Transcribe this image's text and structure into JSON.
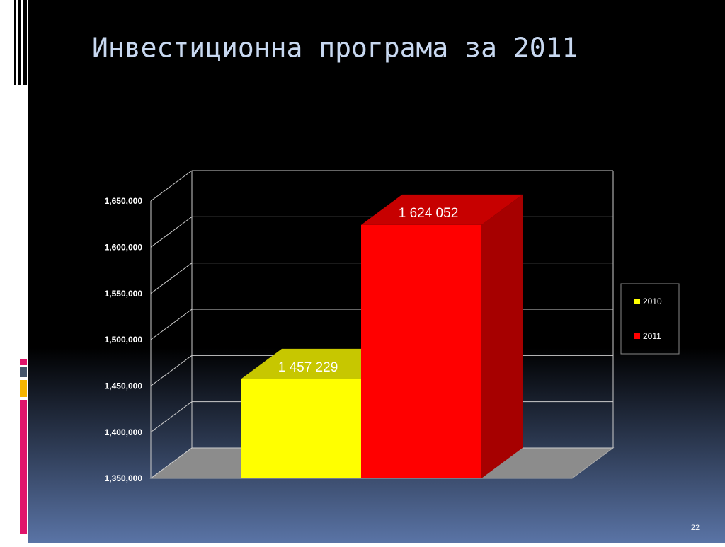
{
  "chart_data": {
    "type": "bar3d",
    "title": "Инвестиционна програма за 2011",
    "categories": [
      null
    ],
    "series": [
      {
        "name": "2010",
        "color": "#ffff00",
        "values": [
          1457229
        ],
        "value_labels": [
          "1 457 229"
        ]
      },
      {
        "name": "2011",
        "color": "#ff0000",
        "values": [
          1624052
        ],
        "value_labels": [
          "1 624 052"
        ]
      }
    ],
    "ylim": [
      1350000,
      1650000
    ],
    "yticks": [
      {
        "value": 1350000,
        "label": "1,350,000"
      },
      {
        "value": 1400000,
        "label": "1,400,000"
      },
      {
        "value": 1450000,
        "label": "1,450,000"
      },
      {
        "value": 1500000,
        "label": "1,500,000"
      },
      {
        "value": 1550000,
        "label": "1,550,000"
      },
      {
        "value": 1600000,
        "label": "1,600,000"
      },
      {
        "value": 1650000,
        "label": "1,650,000"
      }
    ],
    "grid": true,
    "legend": "right"
  },
  "slide": {
    "page_number": "22"
  }
}
